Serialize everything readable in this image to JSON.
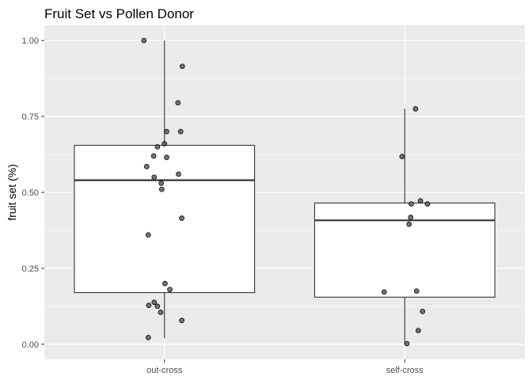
{
  "chart_data": {
    "type": "box",
    "title": "Fruit Set vs Pollen Donor",
    "xlabel": "",
    "ylabel": "fruit set (%)",
    "categories": [
      "out-cross",
      "self-cross"
    ],
    "ylim": [
      -0.05,
      1.05
    ],
    "yticks": [
      0.0,
      0.25,
      0.5,
      0.75,
      1.0
    ],
    "ytick_labels": [
      "0.00",
      "0.25",
      "0.50",
      "0.75",
      "1.00"
    ],
    "grid": true,
    "boxes": [
      {
        "category": "out-cross",
        "whisker_low": 0.02,
        "q1": 0.17,
        "median": 0.54,
        "q3": 0.655,
        "whisker_high": 1.0
      },
      {
        "category": "self-cross",
        "whisker_low": 0.0,
        "q1": 0.155,
        "median": 0.408,
        "q3": 0.465,
        "whisker_high": 0.775
      }
    ],
    "points": [
      {
        "category": "out-cross",
        "values": [
          1.0,
          0.915,
          0.795,
          0.7,
          0.7,
          0.66,
          0.65,
          0.62,
          0.615,
          0.585,
          0.56,
          0.55,
          0.53,
          0.51,
          0.415,
          0.36,
          0.2,
          0.18,
          0.138,
          0.128,
          0.125,
          0.105,
          0.078,
          0.022
        ]
      },
      {
        "category": "self-cross",
        "values": [
          0.775,
          0.618,
          0.472,
          0.462,
          0.462,
          0.418,
          0.395,
          0.175,
          0.172,
          0.108,
          0.045,
          0.002
        ]
      }
    ],
    "colors": {
      "panel": "#ebebeb",
      "grid": "#ffffff",
      "box_fill": "#ffffff",
      "box_stroke": "#333333",
      "point_fill": "#5a5a5a",
      "point_stroke": "#000000"
    }
  }
}
